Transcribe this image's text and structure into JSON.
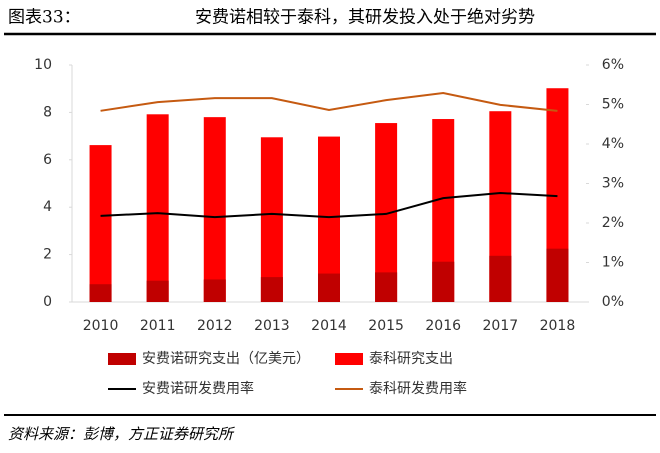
{
  "header": {
    "label": "图表33：",
    "title": "安费诺相较于泰科，其研发投入处于绝对劣势"
  },
  "source": "资料来源：彭博，方正证券研究所",
  "chart_data": {
    "type": "bar",
    "categories": [
      "2010",
      "2011",
      "2012",
      "2013",
      "2014",
      "2015",
      "2016",
      "2017",
      "2018"
    ],
    "series": [
      {
        "name": "泰科研究支出",
        "type": "bar",
        "color": "#ff0000",
        "values": [
          6.62,
          7.92,
          7.8,
          6.95,
          6.98,
          7.55,
          7.72,
          8.05,
          9.02
        ]
      },
      {
        "name": "安费诺研究支出（亿美元）",
        "type": "bar",
        "color": "#c00000",
        "values": [
          0.75,
          0.9,
          0.95,
          1.05,
          1.2,
          1.25,
          1.7,
          1.95,
          2.25
        ]
      },
      {
        "name": "安费诺研发费用率",
        "type": "line",
        "axis": "y2",
        "color": "#000000",
        "values": [
          2.18,
          2.25,
          2.15,
          2.23,
          2.15,
          2.23,
          2.63,
          2.76,
          2.68
        ]
      },
      {
        "name": "泰科研发费用率",
        "type": "line",
        "axis": "y2",
        "color": "#c55a11",
        "values": [
          4.84,
          5.06,
          5.16,
          5.16,
          4.86,
          5.11,
          5.29,
          4.99,
          4.84
        ]
      }
    ],
    "legend_order": [
      1,
      0,
      2,
      3
    ],
    "ylim": [
      0,
      10
    ],
    "yticks": [
      0,
      2,
      4,
      6,
      8,
      10
    ],
    "y2lim": [
      0,
      6
    ],
    "y2ticks": [
      {
        "value": 0,
        "label": "0%"
      },
      {
        "value": 1,
        "label": "1%"
      },
      {
        "value": 2,
        "label": "2%"
      },
      {
        "value": 3,
        "label": "3%"
      },
      {
        "value": 4,
        "label": "4%"
      },
      {
        "value": 5,
        "label": "5%"
      },
      {
        "value": 6,
        "label": "6%"
      }
    ]
  }
}
